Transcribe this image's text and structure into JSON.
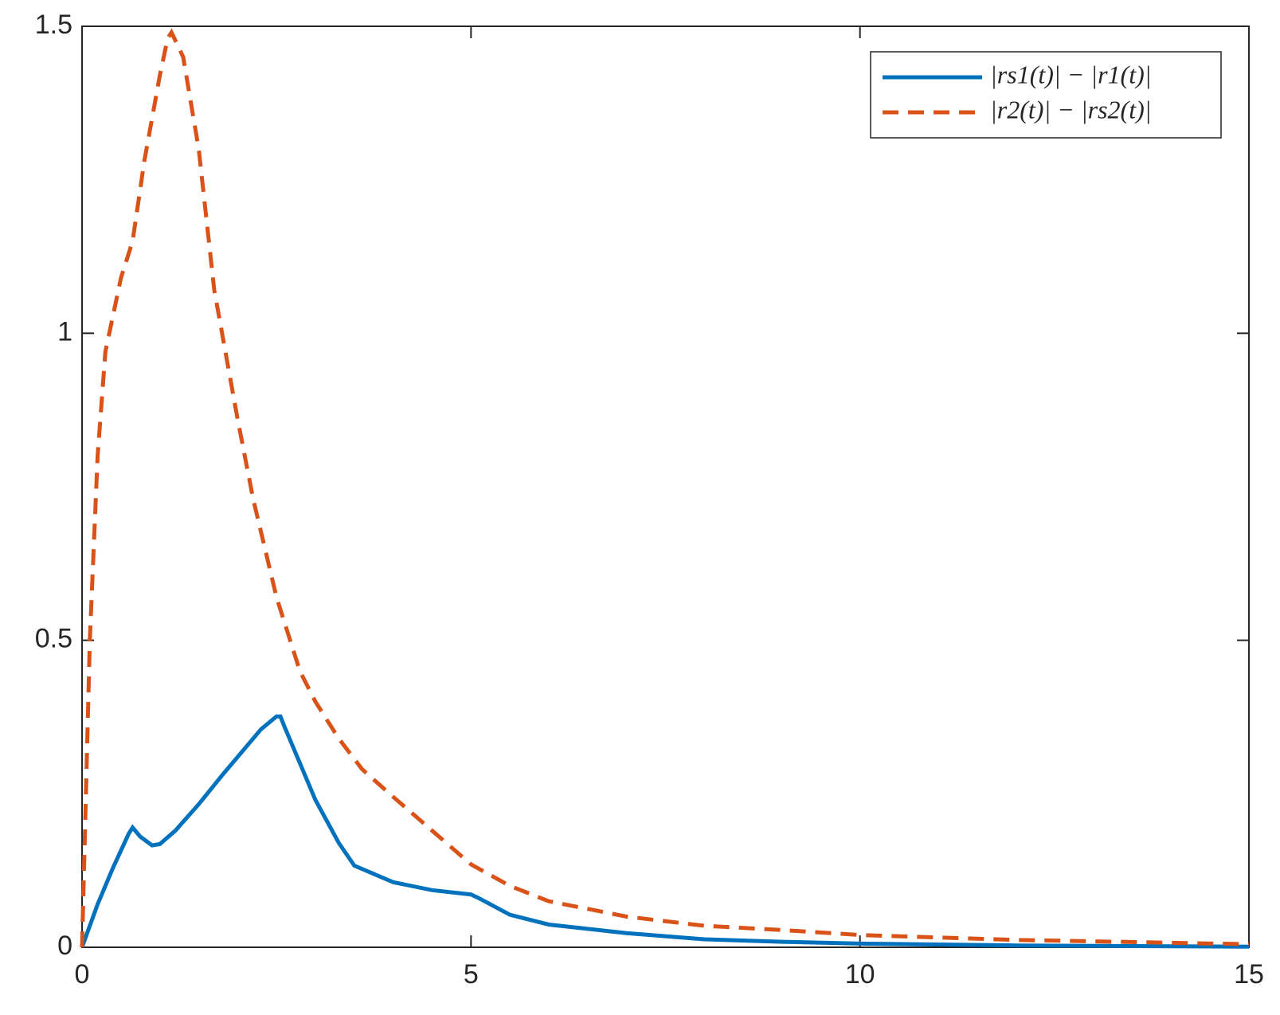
{
  "chart_data": {
    "type": "line",
    "series": [
      {
        "name": "|rs1(t)| − |r1(t)|",
        "color": "#0072bd",
        "dash": "solid",
        "x": [
          0,
          0.2,
          0.4,
          0.6,
          0.65,
          0.75,
          0.9,
          1.0,
          1.2,
          1.5,
          1.8,
          2.0,
          2.3,
          2.5,
          2.55,
          2.6,
          2.8,
          3.0,
          3.3,
          3.5,
          4.0,
          4.5,
          5.0,
          5.1,
          5.5,
          6,
          7,
          8,
          9,
          10,
          12,
          15
        ],
        "values": [
          0,
          0.07,
          0.13,
          0.185,
          0.195,
          0.18,
          0.166,
          0.168,
          0.19,
          0.233,
          0.28,
          0.31,
          0.355,
          0.376,
          0.376,
          0.36,
          0.3,
          0.24,
          0.17,
          0.133,
          0.106,
          0.093,
          0.086,
          0.08,
          0.053,
          0.037,
          0.023,
          0.013,
          0.009,
          0.006,
          0.003,
          0.001
        ]
      },
      {
        "name": "|r2(t)| − |rs2(t)|",
        "color": "#d95319",
        "dash": "dashed",
        "x": [
          0,
          0.05,
          0.1,
          0.2,
          0.3,
          0.4,
          0.5,
          0.65,
          0.8,
          1.0,
          1.1,
          1.15,
          1.3,
          1.5,
          1.7,
          2.0,
          2.2,
          2.5,
          2.8,
          3.0,
          3.3,
          3.6,
          4.0,
          4.5,
          5.0,
          5.5,
          6,
          7,
          8,
          9,
          10,
          12,
          15
        ],
        "values": [
          0,
          0.25,
          0.5,
          0.8,
          0.97,
          1.03,
          1.09,
          1.15,
          1.28,
          1.42,
          1.48,
          1.49,
          1.45,
          1.3,
          1.07,
          0.86,
          0.73,
          0.57,
          0.45,
          0.4,
          0.34,
          0.29,
          0.245,
          0.19,
          0.135,
          0.1,
          0.075,
          0.05,
          0.035,
          0.028,
          0.02,
          0.012,
          0.005
        ]
      }
    ],
    "xlim": [
      0,
      15
    ],
    "xticks": [
      0,
      5,
      10,
      15
    ],
    "ylim": [
      0,
      1.5
    ],
    "yticks": [
      0,
      0.5,
      1,
      1.5
    ],
    "legend": "top-right",
    "grid": false
  }
}
